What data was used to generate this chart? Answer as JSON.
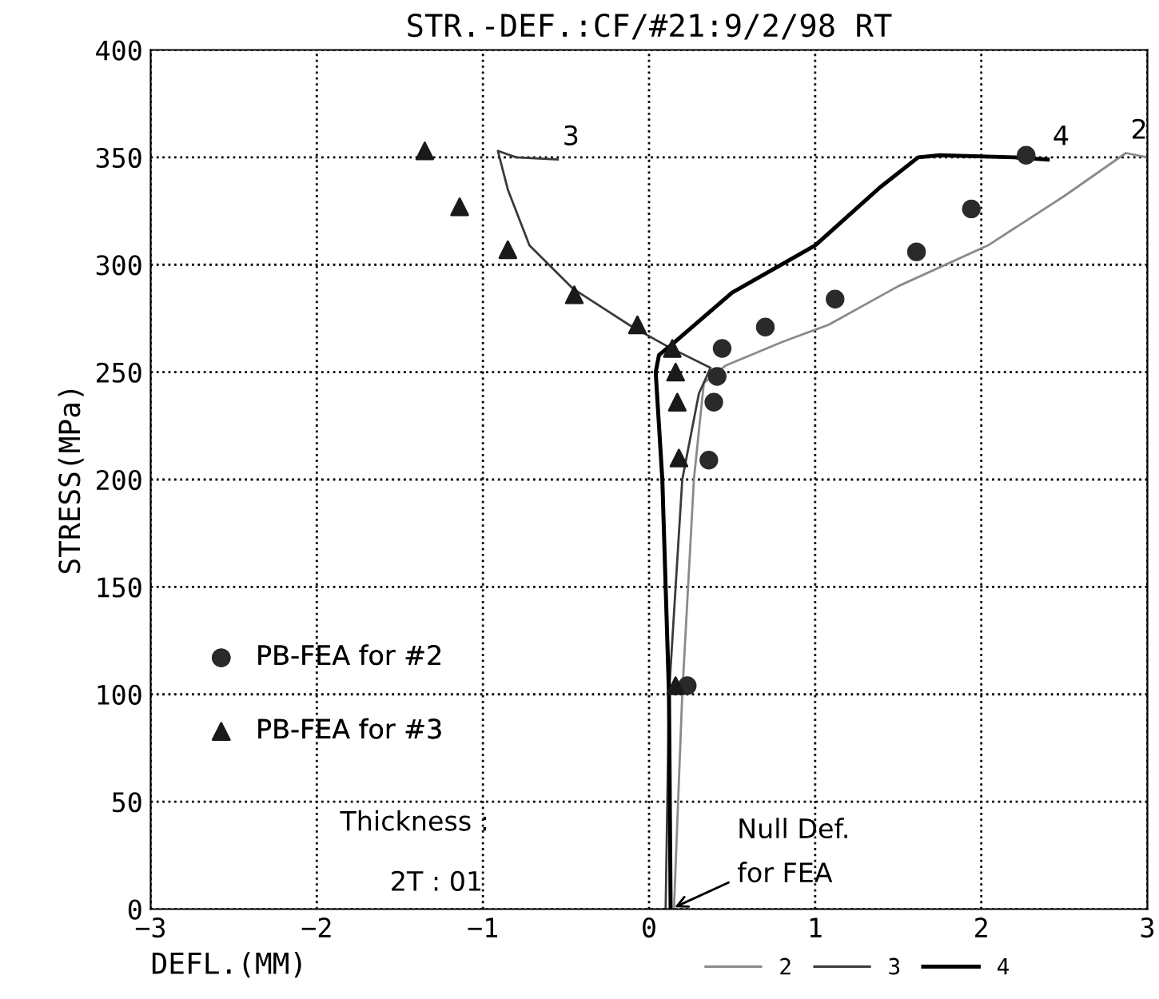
{
  "chart_data": {
    "type": "line",
    "title": "STR.-DEF.:CF/#21:9/2/98 RT",
    "xlabel": "DEFL.(MM)",
    "ylabel": "STRESS(MPa)",
    "xlim": [
      -3,
      3
    ],
    "xticks": [
      {
        "value": -3,
        "label": "−3"
      },
      {
        "value": -2,
        "label": "−2"
      },
      {
        "value": -1,
        "label": "−1"
      },
      0,
      1,
      2,
      3
    ],
    "ylim": [
      0,
      400
    ],
    "yticks": [
      0,
      50,
      100,
      150,
      200,
      250,
      300,
      350,
      400
    ],
    "grid": true,
    "legend": "left",
    "line_style": "solid",
    "series": [
      {
        "name": "2",
        "color": "#8a8a8a",
        "x": [
          0.15,
          0.2,
          0.27,
          0.33,
          0.46,
          0.8,
          1.08,
          1.5,
          2.04,
          2.5,
          2.87,
          3.0
        ],
        "values": [
          0,
          100,
          200,
          245,
          253,
          264,
          272,
          290,
          309,
          332,
          352,
          350
        ]
      },
      {
        "name": "3",
        "color": "#3a3a3a",
        "x": [
          0.1,
          0.12,
          0.2,
          0.3,
          0.37,
          0.11,
          -0.12,
          -0.46,
          -0.72,
          -0.85,
          -0.91,
          -0.8,
          -0.55
        ],
        "values": [
          0,
          100,
          200,
          240,
          252,
          262,
          272,
          289,
          309,
          335,
          353,
          350,
          349
        ]
      },
      {
        "name": "4",
        "color": "#000000",
        "x": [
          0.13,
          0.12,
          0.08,
          0.04,
          0.06,
          0.14,
          0.5,
          1.0,
          1.39,
          1.62,
          1.75,
          2.2,
          2.4
        ],
        "values": [
          0,
          100,
          200,
          250,
          258,
          263,
          287,
          309,
          336,
          350,
          351,
          350,
          349
        ]
      },
      {
        "name": "PB-FEA for #2",
        "type": "scatter",
        "marker": "circle",
        "color": "#2a2a2a",
        "x": [
          0.23,
          0.36,
          0.39,
          0.41,
          0.44,
          0.7,
          1.12,
          1.61,
          1.94,
          2.27
        ],
        "values": [
          104,
          209,
          236,
          248,
          261,
          271,
          284,
          306,
          326,
          351
        ]
      },
      {
        "name": "PB-FEA for #3",
        "type": "scatter",
        "marker": "triangle",
        "color": "#1a1a1a",
        "x": [
          0.16,
          0.18,
          0.17,
          0.16,
          0.14,
          -0.07,
          -0.45,
          -0.85,
          -1.14,
          -1.35
        ],
        "values": [
          104,
          210,
          236,
          250,
          261,
          272,
          286,
          307,
          327,
          353
        ]
      }
    ],
    "annotations": [
      {
        "text": "3",
        "x": -0.55,
        "y": 349
      },
      {
        "text": "4",
        "x": 2.4,
        "y": 349
      },
      {
        "text": "2",
        "x": 2.87,
        "y": 352
      },
      "Thickness :",
      "2T : 01",
      {
        "text": "Null Def.\nfor FEA",
        "x": 0.13,
        "y": 0
      }
    ]
  }
}
